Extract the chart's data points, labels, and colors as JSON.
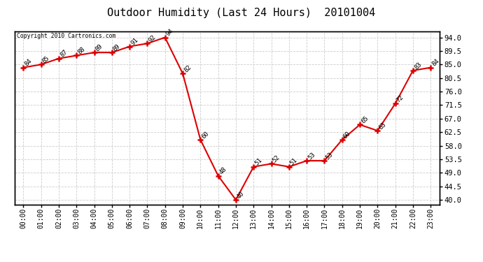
{
  "title": "Outdoor Humidity (Last 24 Hours)  20101004",
  "copyright": "Copyright 2010 Cartronics.com",
  "hours": [
    "00:00",
    "01:00",
    "02:00",
    "03:00",
    "04:00",
    "05:00",
    "06:00",
    "07:00",
    "08:00",
    "09:00",
    "10:00",
    "11:00",
    "12:00",
    "13:00",
    "14:00",
    "15:00",
    "16:00",
    "17:00",
    "18:00",
    "19:00",
    "20:00",
    "21:00",
    "22:00",
    "23:00"
  ],
  "values": [
    84,
    85,
    87,
    88,
    89,
    89,
    91,
    92,
    94,
    82,
    60,
    48,
    40,
    51,
    52,
    51,
    53,
    53,
    60,
    65,
    63,
    72,
    83,
    84
  ],
  "yticks_right": [
    40.0,
    44.5,
    49.0,
    53.5,
    58.0,
    62.5,
    67.0,
    71.5,
    76.0,
    80.5,
    85.0,
    89.5,
    94.0
  ],
  "line_color": "#dd0000",
  "bg_color": "#ffffff",
  "grid_color": "#cccccc",
  "title_fontsize": 11,
  "annotation_fontsize": 6.5,
  "xlabel_fontsize": 7,
  "ylabel_fontsize": 7.5
}
